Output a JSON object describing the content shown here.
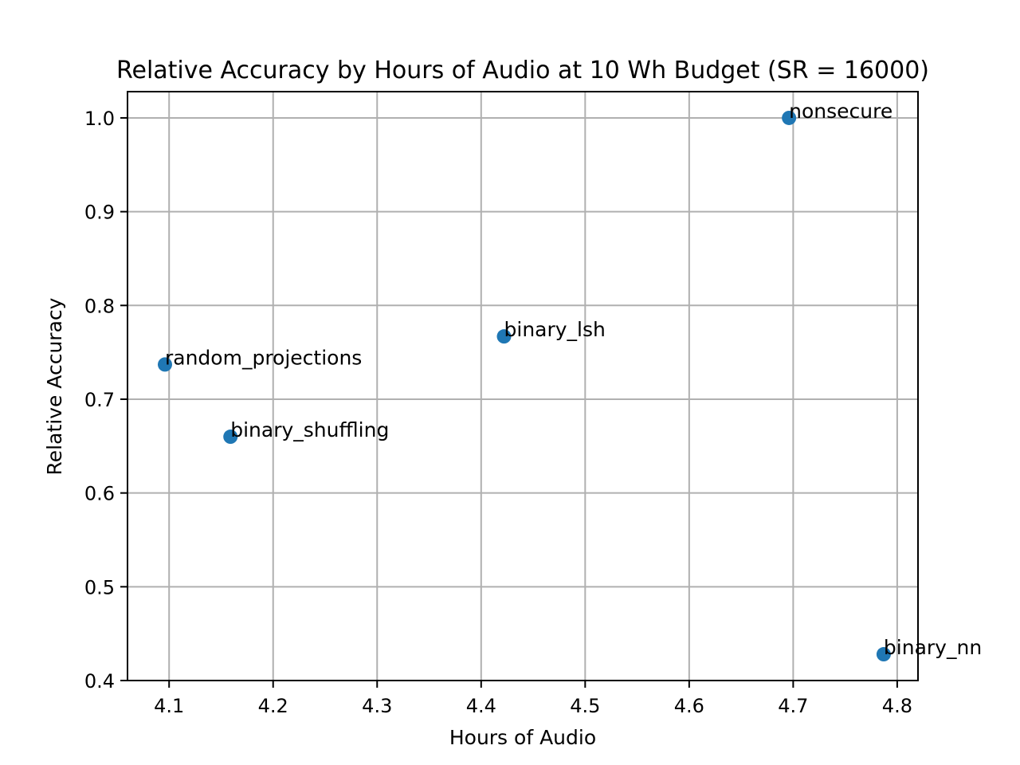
{
  "chart_data": {
    "type": "scatter",
    "title": "Relative Accuracy by Hours of Audio at 10 Wh Budget (SR = 16000)",
    "xlabel": "Hours of Audio",
    "ylabel": "Relative Accuracy",
    "xlim": [
      4.06,
      4.82
    ],
    "ylim": [
      0.4,
      1.028
    ],
    "xticks": [
      "4.1",
      "4.2",
      "4.3",
      "4.4",
      "4.5",
      "4.6",
      "4.7",
      "4.8"
    ],
    "yticks": [
      "0.4",
      "0.5",
      "0.6",
      "0.7",
      "0.8",
      "0.9",
      "1.0"
    ],
    "grid": true,
    "marker_color": "#1f77b4",
    "points": [
      {
        "label": "nonsecure",
        "x": 4.696,
        "y": 1.0
      },
      {
        "label": "binary_lsh",
        "x": 4.422,
        "y": 0.767
      },
      {
        "label": "random_projections",
        "x": 4.096,
        "y": 0.737
      },
      {
        "label": "binary_shuffling",
        "x": 4.159,
        "y": 0.66
      },
      {
        "label": "binary_nn",
        "x": 4.787,
        "y": 0.428
      }
    ]
  }
}
